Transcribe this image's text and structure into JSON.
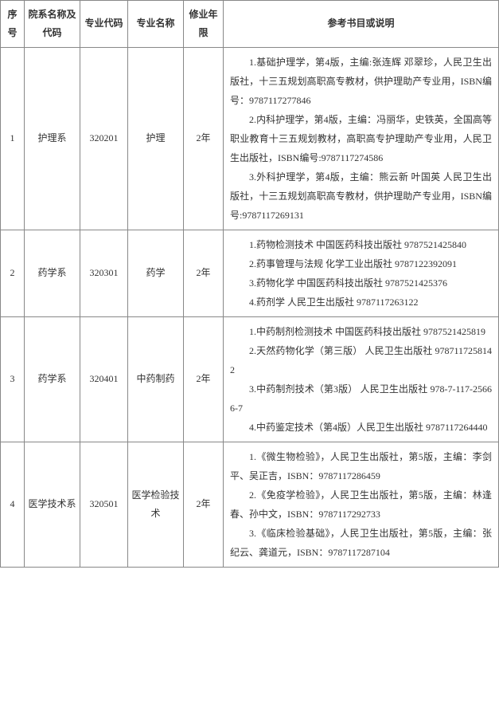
{
  "headers": {
    "seq": "序号",
    "dept": "院系名称及代码",
    "code": "专业代码",
    "name": "专业名称",
    "years": "修业年限",
    "desc": "参考书目或说明"
  },
  "rows": [
    {
      "seq": "1",
      "dept": "护理系",
      "code": "320201",
      "name": "护理",
      "years": "2年",
      "desc": [
        "1.基础护理学，第4版，主编:张连辉 邓翠珍，人民卫生出版社，十三五规划高职高专教材，供护理助产专业用，ISBN编号：9787117277846",
        "2.内科护理学，第4版，主编：冯丽华，史铁英，全国高等职业教育十三五规划教材，高职高专护理助产专业用，人民卫生出版社，ISBN编号:9787117274586",
        "3.外科护理学，第4版，主编：熊云新 叶国英 人民卫生出版社，十三五规划高职高专教材，供护理助产专业用，ISBN编号:9787117269131"
      ]
    },
    {
      "seq": "2",
      "dept": "药学系",
      "code": "320301",
      "name": "药学",
      "years": "2年",
      "desc": [
        "1.药物检测技术 中国医药科技出版社 9787521425840",
        "2.药事管理与法规 化学工业出版社 9787122392091",
        "3.药物化学 中国医药科技出版社 9787521425376",
        "4.药剂学 人民卫生出版社 9787117263122"
      ]
    },
    {
      "seq": "3",
      "dept": "药学系",
      "code": "320401",
      "name": "中药制药",
      "years": "2年",
      "desc": [
        "1.中药制剂检测技术 中国医药科技出版社 9787521425819",
        "2.天然药物化学（第三版） 人民卫生出版社 9787117258142",
        "3.中药制剂技术（第3版） 人民卫生出版社 978-7-117-25666-7",
        "4.中药鉴定技术（第4版）人民卫生出版社 9787117264440"
      ]
    },
    {
      "seq": "4",
      "dept": "医学技术系",
      "code": "320501",
      "name": "医学检验技术",
      "years": "2年",
      "desc": [
        "1.《微生物检验》，人民卫生出版社，第5版，主编：李剑平、吴正吉，ISBN：9787117286459",
        "2.《免疫学检验》，人民卫生出版社，第5版，主编：林逢春、孙中文，ISBN：9787117292733",
        "3.《临床检验基础》，人民卫生出版社，第5版，主编：张纪云、龚道元，ISBN：9787117287104"
      ]
    }
  ]
}
